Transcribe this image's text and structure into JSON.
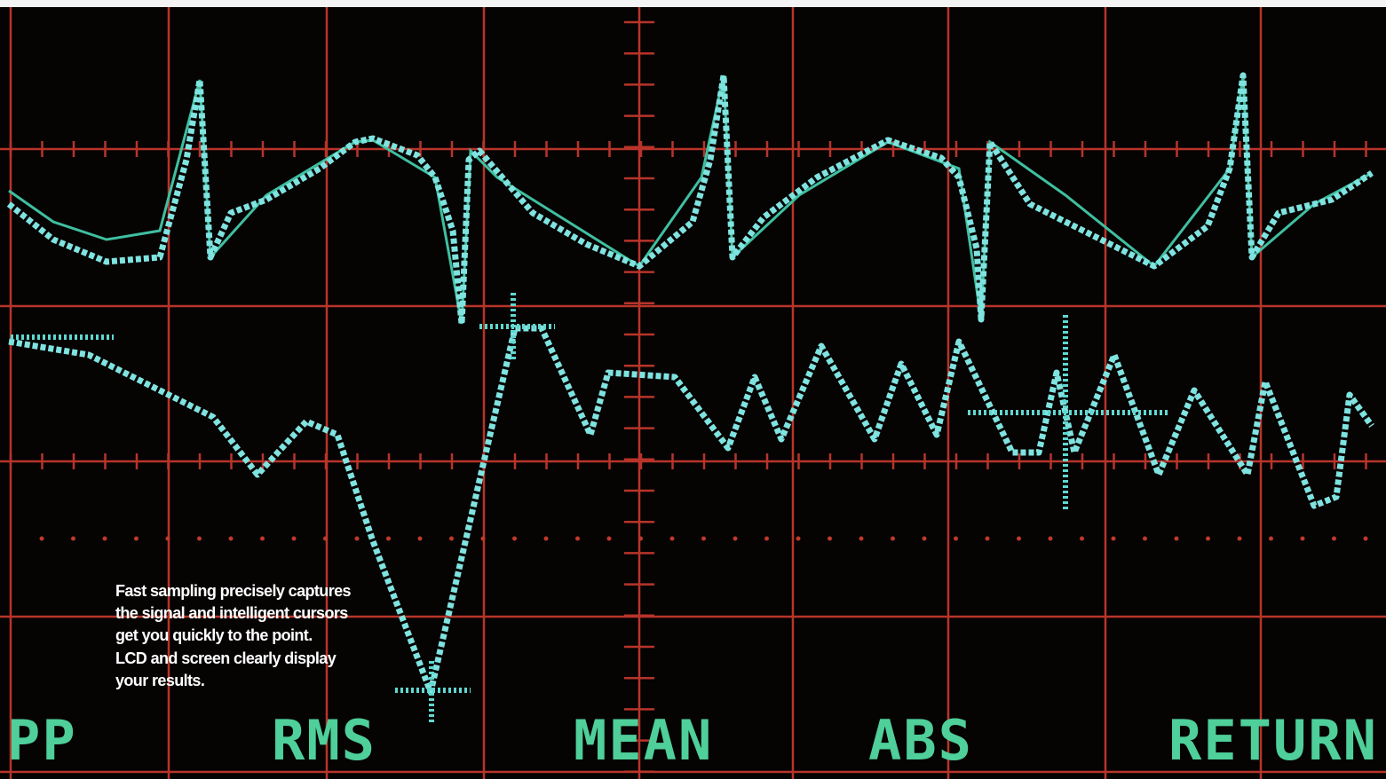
{
  "caption": {
    "lines": [
      "Fast sampling precisely captures",
      "the signal and intelligent cursors",
      "get you quickly to the point.",
      "LCD and screen clearly display",
      "your results."
    ]
  },
  "softkeys": [
    "PP",
    "RMS",
    "MEAN",
    "ABS",
    "RETURN"
  ]
}
